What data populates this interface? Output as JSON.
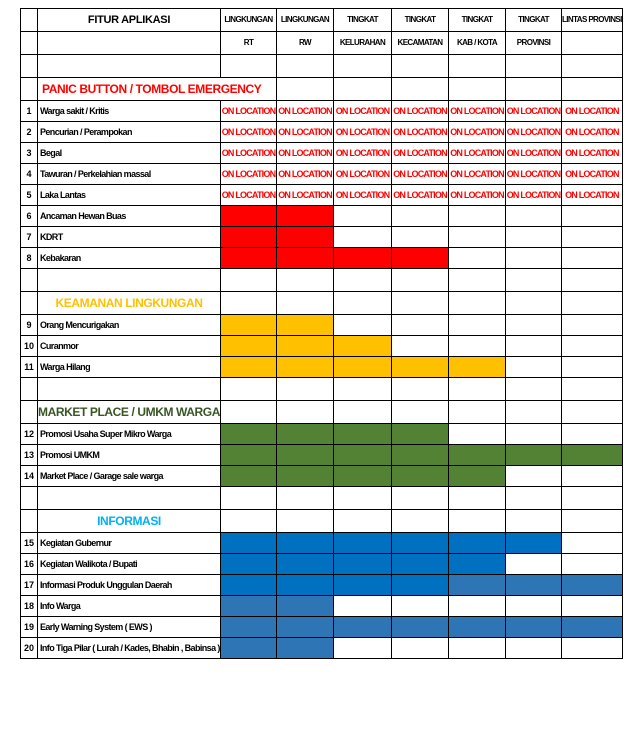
{
  "columns": {
    "feature_header": "FITUR APLIKASI",
    "levels": [
      {
        "line1": "LINGKUNGAN",
        "line2": "RT"
      },
      {
        "line1": "LINGKUNGAN",
        "line2": "RW"
      },
      {
        "line1": "TINGKAT",
        "line2": "KELURAHAN"
      },
      {
        "line1": "TINGKAT",
        "line2": "KECAMATAN"
      },
      {
        "line1": "TINGKAT",
        "line2": "KAB / KOTA"
      },
      {
        "line1": "TINGKAT",
        "line2": "PROVINSI"
      },
      {
        "line1": "LINTAS PROVINSI",
        "line2": ""
      }
    ]
  },
  "cell_text": "ON LOCATION",
  "colors": {
    "red": "#ff0000",
    "yellow": "#ffc000",
    "green": "#548235",
    "blue": "#0070c0",
    "blue_light": "#2e75b6",
    "section_red": "#ff0000",
    "section_yellow": "#ffc000",
    "section_green": "#375623",
    "section_blue": "#00b0f0"
  },
  "sections": [
    {
      "title": "PANIC BUTTON / TOMBOL EMERGENCY",
      "title_color": "#ff0000",
      "align": "left",
      "rows": [
        {
          "no": "1",
          "name": "Warga sakit / Kritis",
          "cells": [
            "L",
            "L",
            "L",
            "L",
            "L",
            "L",
            "L"
          ]
        },
        {
          "no": "2",
          "name": "Pencurian / Perampokan",
          "cells": [
            "L",
            "L",
            "L",
            "L",
            "L",
            "L",
            "L"
          ]
        },
        {
          "no": "3",
          "name": "Begal",
          "cells": [
            "L",
            "L",
            "L",
            "L",
            "L",
            "L",
            "L"
          ]
        },
        {
          "no": "4",
          "name": "Tawuran / Perkelahian massal",
          "cells": [
            "L",
            "L",
            "L",
            "L",
            "L",
            "L",
            "L"
          ]
        },
        {
          "no": "5",
          "name": "Laka Lantas",
          "cells": [
            "L",
            "L",
            "L",
            "L",
            "L",
            "L",
            "L"
          ]
        },
        {
          "no": "6",
          "name": "Ancaman Hewan Buas",
          "cells": [
            "red",
            "red",
            "",
            "",
            "",
            "",
            ""
          ]
        },
        {
          "no": "7",
          "name": "KDRT",
          "cells": [
            "red",
            "red",
            "",
            "",
            "",
            "",
            ""
          ]
        },
        {
          "no": "8",
          "name": "Kebakaran",
          "cells": [
            "red",
            "red",
            "red",
            "red",
            "",
            "",
            ""
          ]
        }
      ]
    },
    {
      "title": "KEAMANAN LINGKUNGAN",
      "title_color": "#ffc000",
      "align": "center",
      "rows": [
        {
          "no": "9",
          "name": "Orang Mencurigakan",
          "cells": [
            "yel",
            "yel",
            "",
            "",
            "",
            "",
            ""
          ]
        },
        {
          "no": "10",
          "name": "Curanmor",
          "cells": [
            "yel",
            "yel",
            "yel",
            "",
            "",
            "",
            ""
          ]
        },
        {
          "no": "11",
          "name": "Warga Hilang",
          "cells": [
            "yel",
            "yel",
            "yel",
            "yel",
            "yel",
            "",
            ""
          ]
        }
      ]
    },
    {
      "title": "MARKET PLACE / UMKM WARGA",
      "title_color": "#375623",
      "align": "center",
      "rows": [
        {
          "no": "12",
          "name": "Promosi Usaha Super Mikro Warga",
          "cells": [
            "grn",
            "grn",
            "grn",
            "grn",
            "",
            "",
            ""
          ]
        },
        {
          "no": "13",
          "name": "Promosi UMKM",
          "cells": [
            "grn",
            "grn",
            "grn",
            "grn",
            "grn",
            "grn",
            "grn"
          ]
        },
        {
          "no": "14",
          "name": "Market Place / Garage sale warga",
          "cells": [
            "grn",
            "grn",
            "grn",
            "grn",
            "grn",
            "",
            ""
          ]
        }
      ]
    },
    {
      "title": "INFORMASI",
      "title_color": "#00b0f0",
      "align": "center",
      "rows": [
        {
          "no": "15",
          "name": "Kegiatan Gubernur",
          "cells": [
            "blu1",
            "blu1",
            "blu1",
            "blu1",
            "blu1",
            "blu1",
            ""
          ]
        },
        {
          "no": "16",
          "name": "Kegiatan Walikota / Bupati",
          "cells": [
            "blu1",
            "blu1",
            "blu1",
            "blu1",
            "blu1",
            "",
            ""
          ]
        },
        {
          "no": "17",
          "name": "Informasi Produk Unggulan Daerah",
          "cells": [
            "blu1",
            "blu1",
            "blu1",
            "blu1",
            "blu2",
            "blu2",
            "blu2"
          ]
        },
        {
          "no": "18",
          "name": "Info Warga",
          "cells": [
            "blu2",
            "blu2",
            "",
            "",
            "",
            "",
            ""
          ]
        },
        {
          "no": "19",
          "name": "Early Warning System ( EWS )",
          "cells": [
            "blu2",
            "blu2",
            "blu2",
            "blu2",
            "blu2",
            "blu2",
            "blu2"
          ]
        },
        {
          "no": "20",
          "name": "Info Tiga Pilar ( Lurah / Kades, Bhabin , Babinsa )",
          "cells": [
            "blu2",
            "blu2",
            "",
            "",
            "",
            "",
            ""
          ]
        }
      ]
    }
  ]
}
